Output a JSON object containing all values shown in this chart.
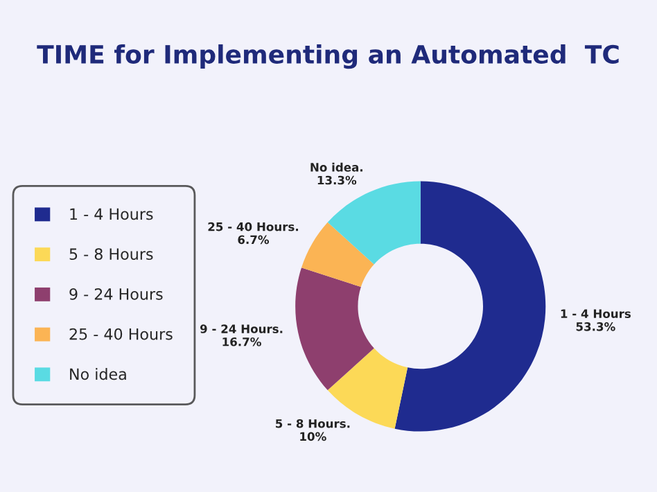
{
  "chart_data": {
    "type": "donut",
    "title": "TIME for Implementing an Automated  TC",
    "categories": [
      "1 - 4 Hours",
      "5 - 8 Hours",
      "9 - 24 Hours",
      "25 - 40 Hours",
      "No idea"
    ],
    "values": [
      53.3,
      10,
      16.7,
      6.7,
      13.3
    ],
    "colors": [
      "#1f2b8f",
      "#fcd957",
      "#8e3f6e",
      "#fbb454",
      "#5adbe3"
    ],
    "value_labels": [
      "1 - 4 Hours\n53.3%",
      "5 - 8 Hours.\n10%",
      "9 - 24 Hours.\n16.7%",
      "25 - 40 Hours.\n6.7%",
      "No idea.\n13.3%"
    ],
    "legend": "left"
  }
}
